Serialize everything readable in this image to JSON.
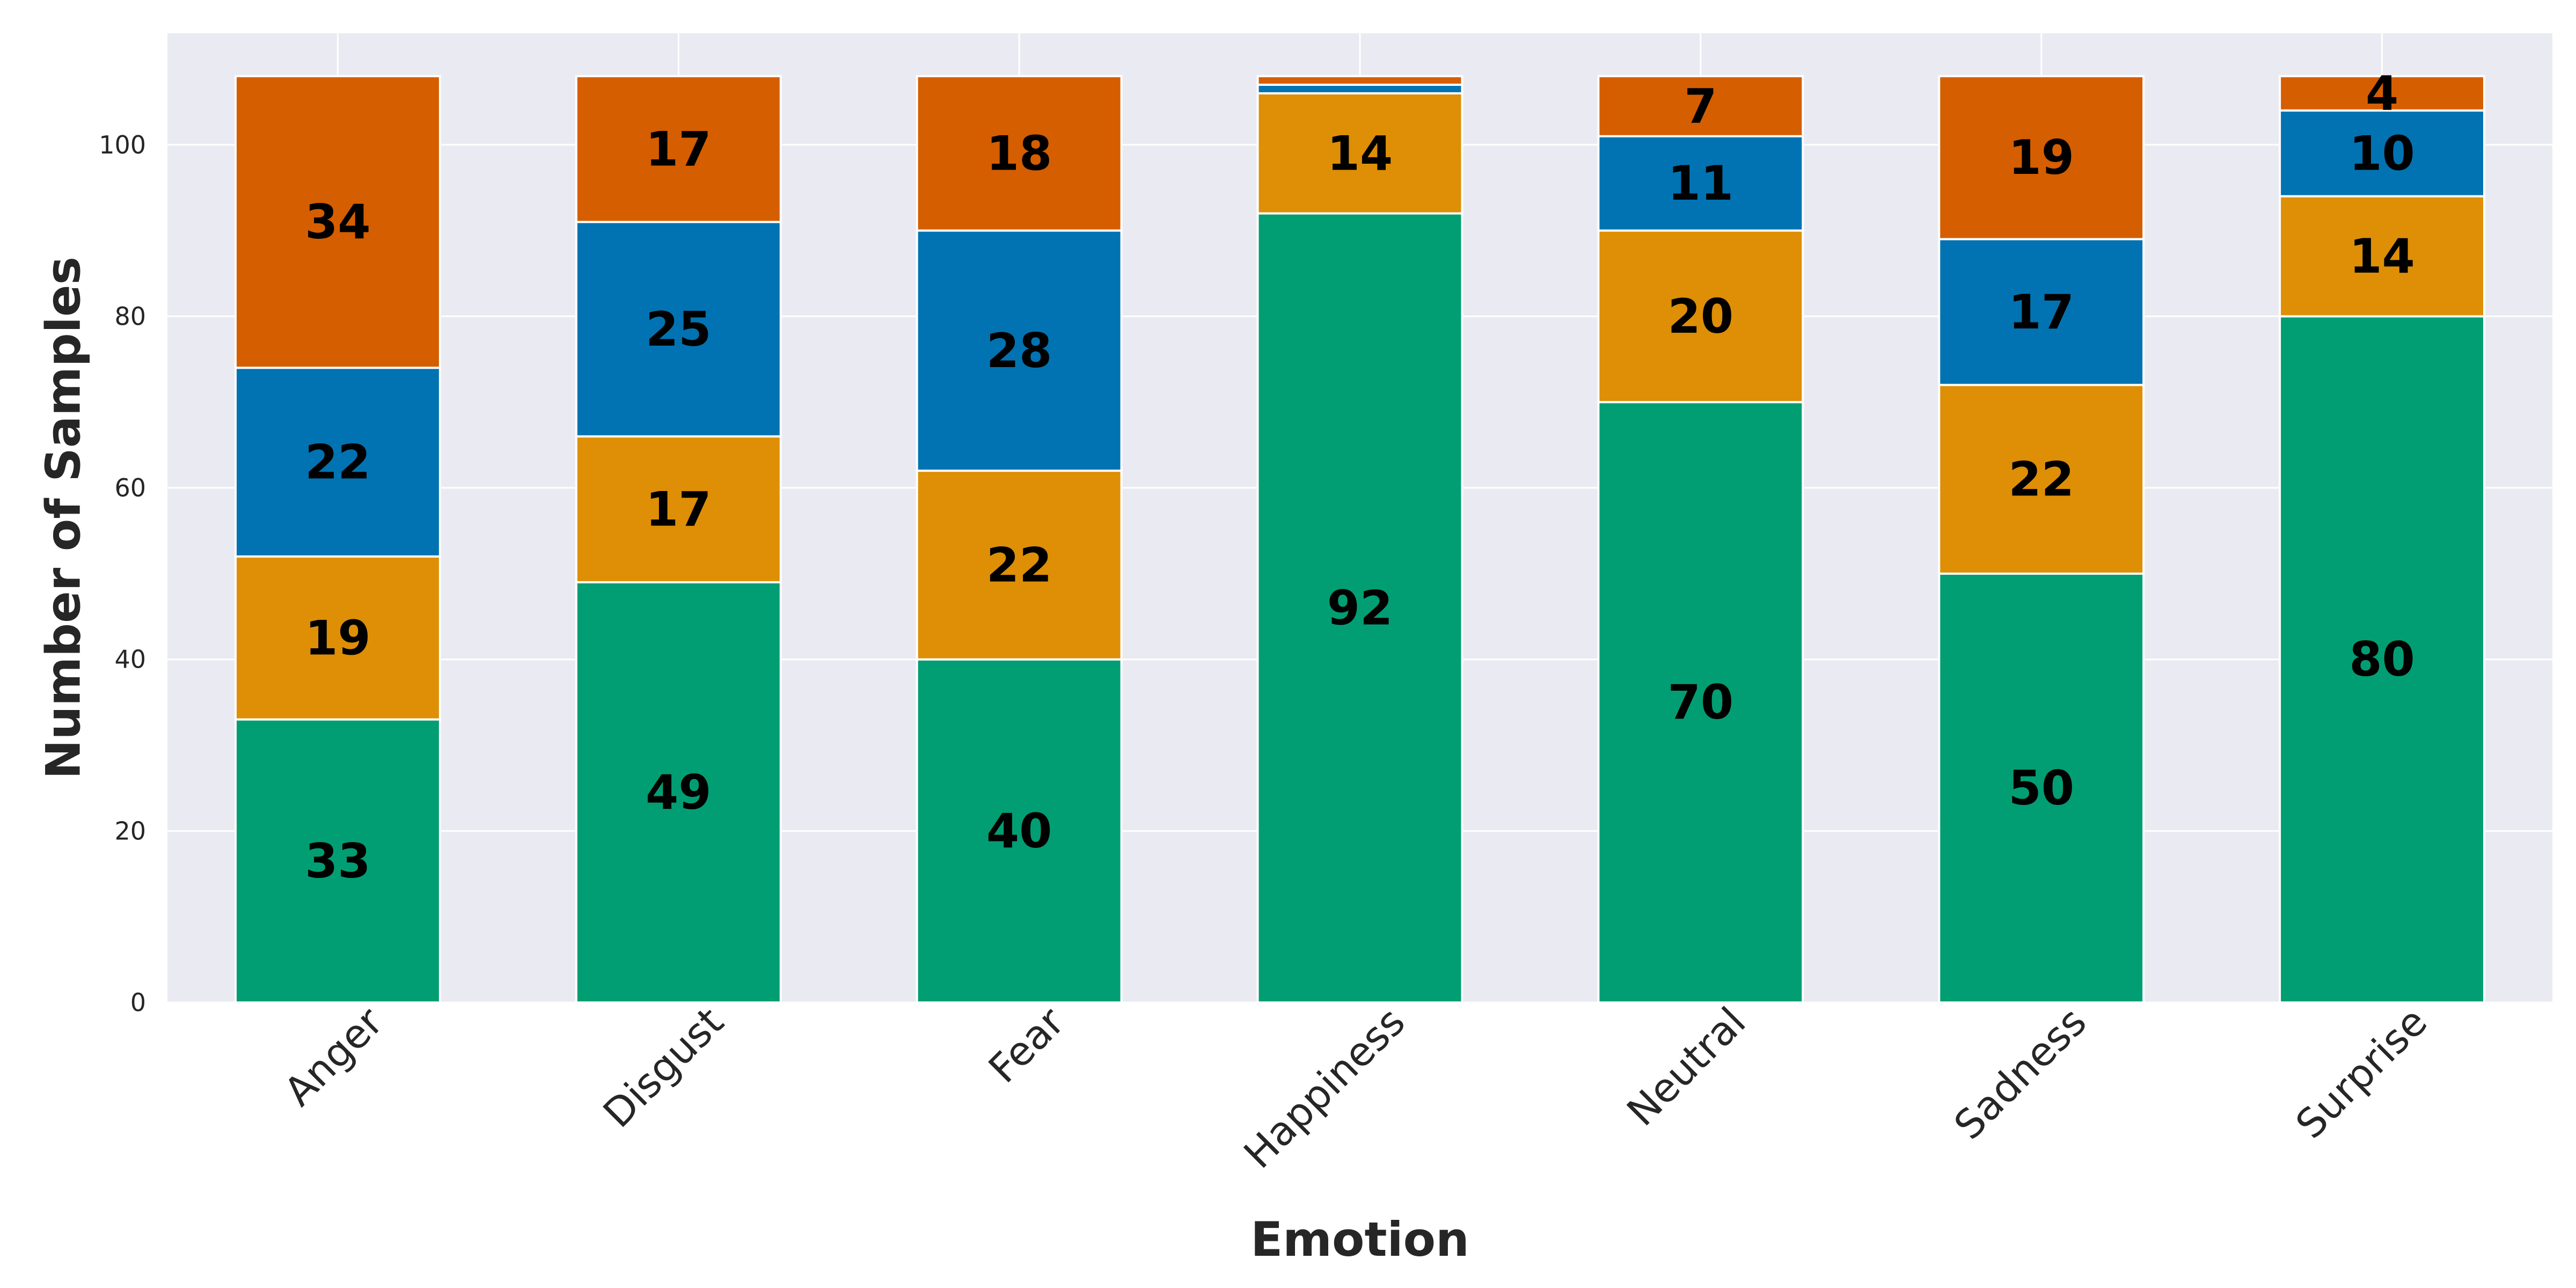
{
  "chart_data": {
    "type": "bar",
    "stacked": true,
    "title": "",
    "xlabel": "Emotion",
    "ylabel": "Number of Samples",
    "categories": [
      "Anger",
      "Disgust",
      "Fear",
      "Happiness",
      "Neutral",
      "Sadness",
      "Surprise"
    ],
    "series": [
      {
        "color": "#029e73",
        "values": [
          33,
          49,
          40,
          92,
          70,
          50,
          80
        ]
      },
      {
        "color": "#de8f05",
        "values": [
          19,
          17,
          22,
          14,
          20,
          22,
          14
        ]
      },
      {
        "color": "#0173b2",
        "values": [
          22,
          25,
          28,
          1,
          11,
          17,
          10
        ]
      },
      {
        "color": "#d55e00",
        "values": [
          34,
          17,
          18,
          1,
          7,
          19,
          4
        ]
      }
    ],
    "ylim": [
      0,
      113
    ],
    "yticks": [
      0,
      20,
      40,
      60,
      80,
      100
    ],
    "grid": true,
    "background": "#eaeaf2",
    "show_labels_min": 4
  }
}
